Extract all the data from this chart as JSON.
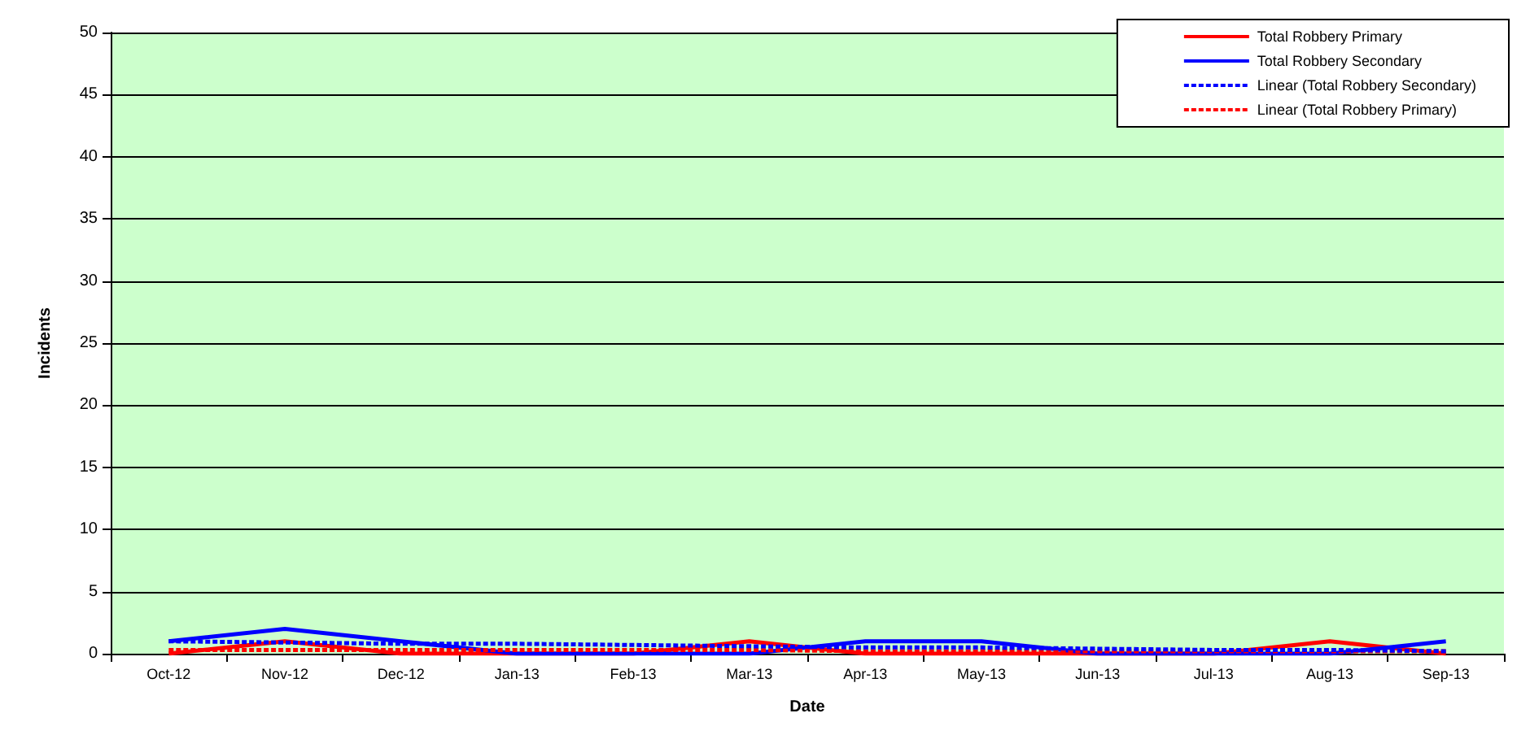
{
  "chart_data": {
    "type": "line",
    "xlabel": "Date",
    "ylabel": "Incidents",
    "categories": [
      "Oct-12",
      "Nov-12",
      "Dec-12",
      "Jan-13",
      "Feb-13",
      "Mar-13",
      "Apr-13",
      "May-13",
      "Jun-13",
      "Jul-13",
      "Aug-13",
      "Sep-13"
    ],
    "series": [
      {
        "name": "Total Robbery Primary",
        "color": "#ff0000",
        "values": [
          0,
          1,
          0,
          0,
          0,
          1,
          0,
          0,
          0,
          0,
          1,
          0
        ]
      },
      {
        "name": "Total Robbery Secondary",
        "color": "#0000ff",
        "values": [
          1,
          2,
          1,
          0,
          0,
          0,
          1,
          1,
          0,
          0,
          0,
          1
        ]
      },
      {
        "name": "Linear (Total Robbery Secondary)",
        "color": "#0000ff",
        "line_style": "dashed",
        "values": [
          1.0,
          0.9,
          0.8,
          0.8,
          0.7,
          0.6,
          0.5,
          0.5,
          0.4,
          0.3,
          0.3,
          0.2
        ]
      },
      {
        "name": "Linear (Total Robbery Primary)",
        "color": "#ff0000",
        "line_style": "dashed",
        "values": [
          0.3,
          0.3,
          0.3,
          0.3,
          0.3,
          0.3,
          0.2,
          0.2,
          0.2,
          0.2,
          0.2,
          0.2
        ]
      }
    ],
    "ylim": [
      0,
      50
    ],
    "yticks": [
      0,
      5,
      10,
      15,
      20,
      25,
      30,
      35,
      40,
      45,
      50
    ],
    "grid": "y",
    "legend": "top right",
    "marker": "none"
  }
}
